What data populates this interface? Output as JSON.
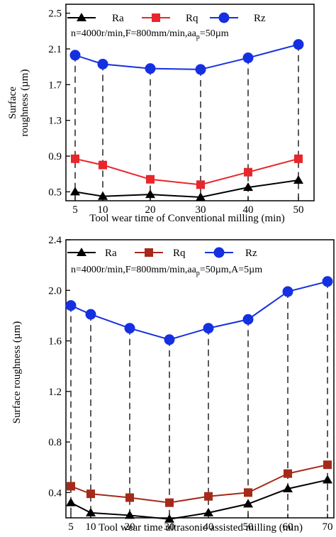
{
  "chart_data": [
    {
      "type": "line",
      "xlabel": "Tool wear time of Conventional milling (min)",
      "ylabel": "Surface roughness (µm)",
      "annotation": "n=4000r/min,F=800mm/min,aₚ=50µm",
      "x": [
        5,
        10,
        20,
        30,
        40,
        50
      ],
      "xticks": [
        "5",
        "10",
        "20",
        "30",
        "40",
        "50"
      ],
      "yticks": [
        "0.5",
        "0.9",
        "1.3",
        "1.7",
        "2.1",
        "2.5"
      ],
      "ylim": [
        0.4,
        2.6
      ],
      "legend_position": "top",
      "grid": false,
      "series": [
        {
          "name": "Ra",
          "marker": "triangle",
          "color": "#000000",
          "values": [
            0.5,
            0.45,
            0.47,
            0.44,
            0.55,
            0.63
          ]
        },
        {
          "name": "Rq",
          "marker": "square",
          "color": "#e8262b",
          "values": [
            0.87,
            0.8,
            0.64,
            0.58,
            0.72,
            0.87
          ]
        },
        {
          "name": "Rz",
          "marker": "circle",
          "color": "#1530e0",
          "values": [
            2.03,
            1.93,
            1.88,
            1.87,
            2.0,
            2.15
          ]
        }
      ]
    },
    {
      "type": "line",
      "xlabel": "Tool wear time ultrasonic assisted milling (min)",
      "ylabel": "Surface roughness (µm)",
      "annotation": "n=4000r/min,F=800mm/min,aₚ=50µm,A=5µm",
      "x": [
        5,
        10,
        20,
        30,
        40,
        50,
        60,
        70
      ],
      "xticks": [
        "5",
        "10",
        "20",
        "30",
        "40",
        "50",
        "60",
        "70"
      ],
      "yticks": [
        "0.4",
        "0.8",
        "1.2",
        "1.6",
        "2.0",
        "2.4"
      ],
      "ylim": [
        0.2,
        2.4
      ],
      "legend_position": "top",
      "grid": false,
      "series": [
        {
          "name": "Ra",
          "marker": "triangle",
          "color": "#000000",
          "values": [
            0.32,
            0.24,
            0.22,
            0.19,
            0.24,
            0.31,
            0.43,
            0.5
          ]
        },
        {
          "name": "Rq",
          "marker": "square",
          "color": "#a52a1a",
          "values": [
            0.45,
            0.39,
            0.36,
            0.32,
            0.37,
            0.4,
            0.55,
            0.62
          ]
        },
        {
          "name": "Rz",
          "marker": "circle",
          "color": "#1530e0",
          "values": [
            1.88,
            1.81,
            1.7,
            1.61,
            1.7,
            1.77,
            1.99,
            2.07
          ]
        }
      ]
    }
  ]
}
